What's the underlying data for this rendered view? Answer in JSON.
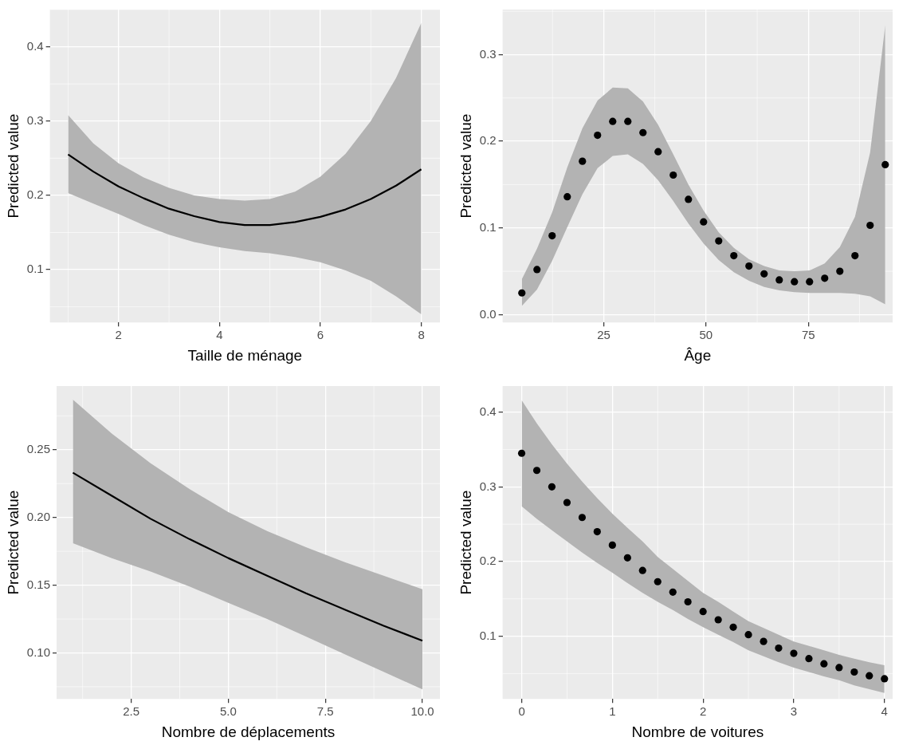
{
  "chart_data": [
    {
      "type": "line",
      "xlabel": "Taille de ménage",
      "ylabel": "Predicted value",
      "xlim": [
        0.64,
        8.37
      ],
      "ylim": [
        0.029,
        0.45
      ],
      "xticks": [
        2,
        4,
        6,
        8
      ],
      "yticks": [
        0.1,
        0.2,
        0.3,
        0.4
      ],
      "grid": true,
      "x": [
        1,
        1.5,
        2,
        2.5,
        3,
        3.5,
        4,
        4.5,
        5,
        5.5,
        6,
        6.5,
        7,
        7.5,
        8
      ],
      "series": [
        {
          "color": "#000000",
          "values": [
            0.255,
            0.232,
            0.212,
            0.196,
            0.182,
            0.172,
            0.164,
            0.16,
            0.16,
            0.164,
            0.171,
            0.181,
            0.195,
            0.213,
            0.235
          ],
          "lower": [
            0.203,
            0.189,
            0.175,
            0.16,
            0.147,
            0.137,
            0.13,
            0.125,
            0.122,
            0.117,
            0.11,
            0.099,
            0.085,
            0.064,
            0.04
          ],
          "upper": [
            0.308,
            0.27,
            0.243,
            0.224,
            0.21,
            0.2,
            0.195,
            0.193,
            0.195,
            0.205,
            0.225,
            0.256,
            0.3,
            0.358,
            0.432
          ]
        }
      ]
    },
    {
      "type": "scatter",
      "xlabel": "Âge",
      "ylabel": "Predicted value",
      "xlim": [
        0.3,
        95.6
      ],
      "ylim": [
        -0.009,
        0.352
      ],
      "xticks": [
        25,
        50,
        75
      ],
      "yticks": [
        {
          "value": 0,
          "label": "0.0"
        },
        0.1,
        0.2,
        0.3
      ],
      "grid": true,
      "marker": "circle",
      "x": [
        5,
        8.7,
        12.4,
        16.1,
        19.8,
        23.5,
        27.2,
        30.9,
        34.6,
        38.3,
        42,
        45.7,
        49.4,
        53.1,
        56.8,
        60.5,
        64.2,
        67.9,
        71.6,
        75.3,
        79,
        82.7,
        86.4,
        90.1,
        93.8
      ],
      "series": [
        {
          "color": "#000000",
          "values": [
            0.025,
            0.052,
            0.091,
            0.136,
            0.177,
            0.207,
            0.223,
            0.223,
            0.21,
            0.188,
            0.161,
            0.133,
            0.107,
            0.085,
            0.068,
            0.056,
            0.047,
            0.04,
            0.038,
            0.038,
            0.042,
            0.05,
            0.068,
            0.103,
            0.173
          ],
          "lower": [
            0.01,
            0.029,
            0.062,
            0.101,
            0.139,
            0.169,
            0.183,
            0.185,
            0.174,
            0.155,
            0.131,
            0.105,
            0.082,
            0.063,
            0.049,
            0.039,
            0.032,
            0.028,
            0.026,
            0.025,
            0.025,
            0.025,
            0.024,
            0.021,
            0.012
          ],
          "upper": [
            0.041,
            0.076,
            0.118,
            0.17,
            0.215,
            0.247,
            0.262,
            0.261,
            0.246,
            0.219,
            0.185,
            0.15,
            0.12,
            0.095,
            0.077,
            0.064,
            0.056,
            0.051,
            0.05,
            0.051,
            0.059,
            0.078,
            0.113,
            0.187,
            0.334
          ]
        }
      ]
    },
    {
      "type": "line",
      "xlabel": "Nombre de déplacements",
      "ylabel": "Predicted value",
      "xlim": [
        0.58,
        10.45
      ],
      "ylim": [
        0.066,
        0.297
      ],
      "xticks": [
        {
          "value": 2.5,
          "label": "2.5"
        },
        {
          "value": 5,
          "label": "5.0"
        },
        {
          "value": 7.5,
          "label": "7.5"
        },
        {
          "value": 10,
          "label": "10.0"
        }
      ],
      "yticks": [
        {
          "value": 0.1,
          "label": "0.10"
        },
        0.15,
        {
          "value": 0.2,
          "label": "0.20"
        },
        0.25
      ],
      "grid": true,
      "x": [
        1,
        2,
        3,
        4,
        5,
        6,
        7,
        8,
        9,
        10
      ],
      "series": [
        {
          "color": "#000000",
          "values": [
            0.233,
            0.216,
            0.199,
            0.184,
            0.17,
            0.157,
            0.144,
            0.132,
            0.12,
            0.109
          ],
          "lower": [
            0.181,
            0.17,
            0.16,
            0.149,
            0.137,
            0.125,
            0.112,
            0.099,
            0.086,
            0.073
          ],
          "upper": [
            0.287,
            0.262,
            0.24,
            0.221,
            0.204,
            0.19,
            0.178,
            0.167,
            0.157,
            0.147
          ]
        }
      ]
    },
    {
      "type": "scatter",
      "xlabel": "Nombre de voitures",
      "ylabel": "Predicted value",
      "xlim": [
        -0.21,
        4.09
      ],
      "ylim": [
        0.016,
        0.435
      ],
      "xticks": [
        0,
        1,
        2,
        3,
        4
      ],
      "yticks": [
        0.1,
        0.2,
        0.3,
        0.4
      ],
      "grid": true,
      "marker": "circle",
      "x": [
        0,
        0.167,
        0.333,
        0.5,
        0.667,
        0.833,
        1,
        1.167,
        1.333,
        1.5,
        1.667,
        1.833,
        2,
        2.167,
        2.333,
        2.5,
        2.667,
        2.833,
        3,
        3.167,
        3.333,
        3.5,
        3.667,
        3.833,
        4
      ],
      "series": [
        {
          "color": "#000000",
          "values": [
            0.345,
            0.322,
            0.3,
            0.279,
            0.259,
            0.24,
            0.222,
            0.205,
            0.188,
            0.173,
            0.159,
            0.146,
            0.133,
            0.122,
            0.112,
            0.102,
            0.093,
            0.084,
            0.077,
            0.07,
            0.063,
            0.058,
            0.052,
            0.047,
            0.043
          ],
          "lower": [
            0.274,
            0.257,
            0.242,
            0.227,
            0.212,
            0.198,
            0.185,
            0.171,
            0.158,
            0.146,
            0.135,
            0.123,
            0.112,
            0.102,
            0.092,
            0.081,
            0.073,
            0.065,
            0.058,
            0.052,
            0.046,
            0.041,
            0.034,
            0.029,
            0.024
          ],
          "upper": [
            0.416,
            0.385,
            0.357,
            0.331,
            0.307,
            0.285,
            0.264,
            0.245,
            0.227,
            0.206,
            0.19,
            0.174,
            0.158,
            0.146,
            0.133,
            0.12,
            0.111,
            0.102,
            0.093,
            0.087,
            0.081,
            0.075,
            0.07,
            0.065,
            0.061
          ]
        }
      ]
    }
  ]
}
